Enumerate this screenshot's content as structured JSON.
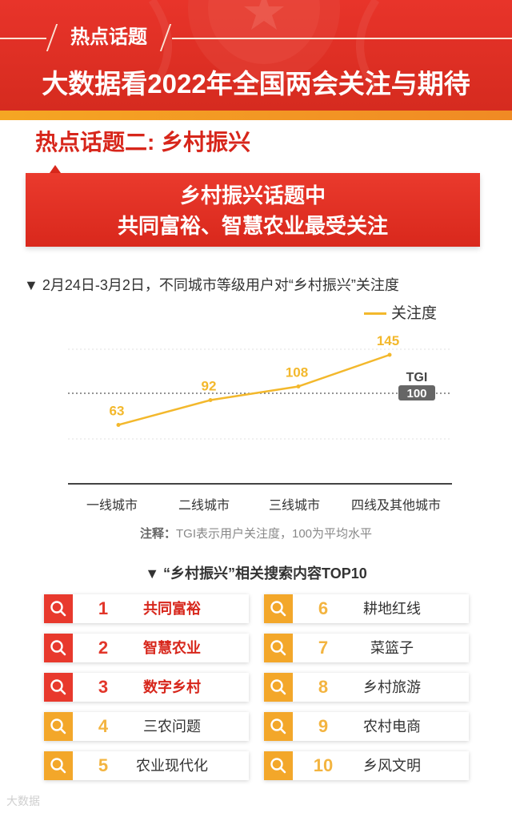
{
  "header": {
    "tag": "热点话题",
    "title": "大数据看2022年全国两会关注与期待"
  },
  "sub_title": "热点话题二: 乡村振兴",
  "banner": {
    "line1": "乡村振兴话题中",
    "line2": "共同富裕、智慧农业最受关注"
  },
  "chart_section": {
    "heading": "▼ 2月24日-3月2日，不同城市等级用户对“乡村振兴”关注度",
    "legend": "关注度",
    "tgi_label": "TGI",
    "tgi_value": "100",
    "note_bold": "注释：",
    "note_text": "TGI表示用户关注度，100为平均水平"
  },
  "chart_data": {
    "type": "line",
    "categories": [
      "一线城市",
      "二线城市",
      "三线城市",
      "四线及其他城市"
    ],
    "series": [
      {
        "name": "关注度",
        "values": [
          63,
          92,
          108,
          145
        ]
      }
    ],
    "reference_line": 100,
    "colors": {
      "line": "#f3b82c",
      "label": "#f3b82c",
      "grid": "#dddddd"
    }
  },
  "top10": {
    "heading": "▼ “乡村振兴”相关搜索内容TOP10",
    "items": [
      {
        "rank": "1",
        "label": "共同富裕"
      },
      {
        "rank": "2",
        "label": "智慧农业"
      },
      {
        "rank": "3",
        "label": "数字乡村"
      },
      {
        "rank": "4",
        "label": "三农问题"
      },
      {
        "rank": "5",
        "label": "农业现代化"
      },
      {
        "rank": "6",
        "label": "耕地红线"
      },
      {
        "rank": "7",
        "label": "菜篮子"
      },
      {
        "rank": "8",
        "label": "乡村旅游"
      },
      {
        "rank": "9",
        "label": "农村电商"
      },
      {
        "rank": "10",
        "label": "乡风文明"
      }
    ]
  },
  "watermark": "大数据"
}
